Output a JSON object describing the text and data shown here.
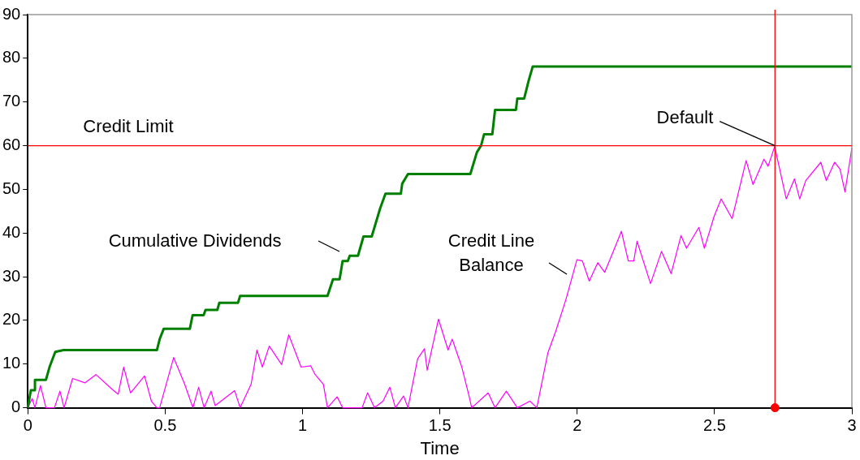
{
  "chart_data": {
    "type": "line",
    "xlabel": "Time",
    "xlim": [
      0,
      3
    ],
    "xticks": [
      0,
      0.5,
      1,
      1.5,
      2,
      2.5,
      3
    ],
    "ylim": [
      0,
      90
    ],
    "yticks": [
      0,
      10,
      20,
      30,
      40,
      50,
      60,
      70,
      80,
      90
    ],
    "grid": false,
    "legend": false,
    "marker": "none",
    "line_style": "solid",
    "series": [
      {
        "name": "Cumulative Dividends",
        "color": "#008000",
        "x": [
          0,
          0.011,
          0.026,
          0.026,
          0.066,
          0.08,
          0.1,
          0.13,
          0.47,
          0.48,
          0.495,
          0.59,
          0.6,
          0.64,
          0.647,
          0.69,
          0.697,
          0.765,
          0.773,
          1.091,
          1.111,
          1.135,
          1.146,
          1.165,
          1.172,
          1.202,
          1.222,
          1.252,
          1.283,
          1.302,
          1.358,
          1.363,
          1.384,
          1.611,
          1.635,
          1.65,
          1.661,
          1.691,
          1.701,
          1.777,
          1.782,
          1.807,
          1.823,
          1.838,
          3
        ],
        "values": [
          0,
          4,
          4,
          6.4,
          6.4,
          9.5,
          12.8,
          13.2,
          13.2,
          15.7,
          18.1,
          18.1,
          21.2,
          21.2,
          22.4,
          22.4,
          24,
          24,
          25.6,
          25.6,
          29.4,
          29.4,
          33.6,
          33.6,
          34.8,
          34.8,
          39.2,
          39.2,
          45.7,
          49,
          49,
          51.3,
          53.5,
          53.5,
          58.5,
          60,
          62.6,
          62.6,
          68.2,
          68.2,
          70.8,
          70.8,
          74.8,
          78.1,
          78.1
        ]
      },
      {
        "name": "Credit Line Balance",
        "color": "#ff00ff",
        "x": [
          0,
          0.016,
          0.026,
          0.046,
          0.066,
          0.097,
          0.117,
          0.132,
          0.163,
          0.208,
          0.248,
          0.309,
          0.329,
          0.349,
          0.374,
          0.425,
          0.45,
          0.47,
          0.48,
          0.531,
          0.571,
          0.601,
          0.622,
          0.642,
          0.667,
          0.682,
          0.753,
          0.773,
          0.813,
          0.834,
          0.854,
          0.879,
          0.924,
          0.95,
          0.995,
          1.03,
          1.046,
          1.076,
          1.091,
          1.126,
          1.146,
          1.217,
          1.237,
          1.262,
          1.293,
          1.318,
          1.338,
          1.368,
          1.384,
          1.419,
          1.444,
          1.454,
          1.495,
          1.53,
          1.545,
          1.58,
          1.606,
          1.616,
          1.676,
          1.701,
          1.742,
          1.782,
          1.828,
          1.853,
          1.893,
          1.923,
          1.959,
          1.999,
          2.019,
          2.044,
          2.075,
          2.1,
          2.14,
          2.161,
          2.186,
          2.206,
          2.218,
          2.267,
          2.307,
          2.342,
          2.378,
          2.398,
          2.443,
          2.463,
          2.499,
          2.524,
          2.564,
          2.615,
          2.64,
          2.68,
          2.695,
          2.719,
          2.761,
          2.791,
          2.81,
          2.832,
          2.887,
          2.907,
          2.937,
          2.957,
          2.975,
          3
        ],
        "values": [
          0,
          2.1,
          0,
          5.1,
          0,
          0,
          3.8,
          0,
          6.7,
          5.7,
          7.6,
          4.1,
          3.1,
          9.3,
          3.4,
          7.3,
          1.5,
          0,
          0,
          11.5,
          5.4,
          0,
          4.7,
          0,
          3.8,
          0.5,
          3.9,
          0,
          5.4,
          13.2,
          9.3,
          14.1,
          9.9,
          16.7,
          9.3,
          9.6,
          7.6,
          5.4,
          0,
          2.5,
          0,
          0,
          3.4,
          0,
          1.5,
          4.7,
          0,
          2.7,
          0,
          11.2,
          13.5,
          8.6,
          20.3,
          13.2,
          15.7,
          9.3,
          2.8,
          0,
          3.4,
          0,
          3.8,
          0,
          1.5,
          0,
          12.5,
          17.7,
          24.8,
          33.9,
          33.6,
          29,
          33.2,
          31,
          37.1,
          40.4,
          33.6,
          33.6,
          38.1,
          28.4,
          35.8,
          30.7,
          39.4,
          36.5,
          41.3,
          36.5,
          43.9,
          47.8,
          43.3,
          56.6,
          51.1,
          56.9,
          55.3,
          59.8,
          47.8,
          52.4,
          47.8,
          52,
          56.2,
          52,
          56.2,
          54.6,
          49.4,
          59.5
        ]
      },
      {
        "type": "scatter",
        "color": "#ff0000",
        "x": [
          2.72
        ],
        "values": [
          0
        ],
        "marker": "circle"
      }
    ],
    "ref_lines": [
      {
        "axis": "y",
        "value": 60,
        "label": "Credit Limit",
        "color": "#ff0000"
      },
      {
        "axis": "x",
        "value": 2.72,
        "color": "#ff0000"
      }
    ],
    "annotations": [
      {
        "text": "Default",
        "x": 2.72,
        "y": 60
      }
    ]
  }
}
